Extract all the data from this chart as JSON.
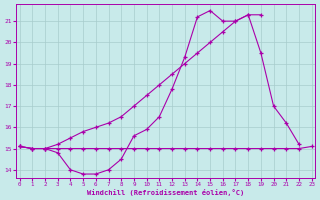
{
  "xlabel": "Windchill (Refroidissement éolien,°C)",
  "background_color": "#c8eaea",
  "grid_color": "#a8cccc",
  "line_color": "#aa00aa",
  "xlim": [
    -0.3,
    23.3
  ],
  "ylim": [
    13.6,
    21.8
  ],
  "xticks": [
    0,
    1,
    2,
    3,
    4,
    5,
    6,
    7,
    8,
    9,
    10,
    11,
    12,
    13,
    14,
    15,
    16,
    17,
    18,
    19,
    20,
    21,
    22,
    23
  ],
  "yticks": [
    14,
    15,
    16,
    17,
    18,
    19,
    20,
    21
  ],
  "series": [
    {
      "x": [
        0,
        1,
        2,
        3,
        4,
        5,
        6,
        7,
        8,
        9,
        10,
        11,
        12,
        13,
        14,
        15,
        16,
        17,
        18,
        19,
        20,
        21,
        22
      ],
      "y": [
        15.1,
        15.0,
        15.0,
        14.8,
        14.0,
        13.8,
        13.8,
        14.0,
        14.5,
        15.6,
        15.9,
        16.5,
        17.8,
        19.3,
        21.2,
        21.5,
        21.0,
        21.0,
        21.3,
        19.5,
        17.0,
        16.2,
        15.2
      ]
    },
    {
      "x": [
        0,
        1,
        2,
        3,
        4,
        5,
        6,
        7,
        8,
        9,
        10,
        11,
        12,
        13,
        14,
        15,
        16,
        17,
        18,
        19,
        20,
        21,
        22,
        23
      ],
      "y": [
        15.1,
        15.0,
        15.0,
        15.0,
        15.0,
        15.0,
        15.0,
        15.0,
        15.0,
        15.0,
        15.0,
        15.0,
        15.0,
        15.0,
        15.0,
        15.0,
        15.0,
        15.0,
        15.0,
        15.0,
        15.0,
        15.0,
        15.0,
        15.1
      ]
    },
    {
      "x": [
        0,
        1,
        2,
        3,
        4,
        5,
        6,
        7,
        8,
        9,
        10,
        11,
        12,
        13,
        14,
        15,
        16,
        17,
        18,
        19
      ],
      "y": [
        15.1,
        15.0,
        15.0,
        15.2,
        15.5,
        15.8,
        16.0,
        16.2,
        16.5,
        17.0,
        17.5,
        18.0,
        18.5,
        19.0,
        19.5,
        20.0,
        20.5,
        21.0,
        21.3,
        21.3
      ]
    }
  ]
}
